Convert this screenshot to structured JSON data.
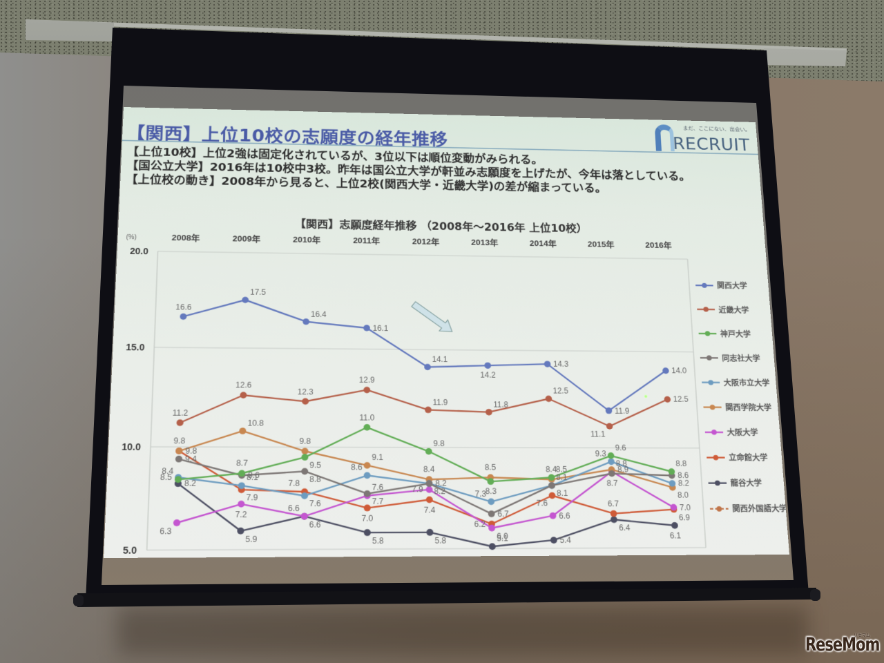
{
  "scene": {
    "watermark": "ReseMom",
    "watermark_sub": "リセマム"
  },
  "slide": {
    "title": "【関西】上位10校の志願度の経年推移",
    "logo": {
      "tagline": "まだ、ここにない、出会い。",
      "name": "RECRUIT"
    },
    "bullets": [
      {
        "tag": "【上位10校】",
        "text": "上位2強は固定化されているが、3位以下は順位変動がみられる。"
      },
      {
        "tag": "【国公立大学】",
        "text": "2016年は10校中3校。昨年は国公立大学が軒並み志願度を上げたが、今年は落としている。"
      },
      {
        "tag": "【上位校の動き】",
        "text": "2008年から見ると、上位2校(関西大学・近畿大学)の差が縮まっている。"
      }
    ]
  },
  "chart_data": {
    "type": "line",
    "title": "【関西】志願度経年推移 （2008年～2016年 上位10校）",
    "xlabel": "",
    "ylabel": "(%)",
    "categories": [
      "2008年",
      "2009年",
      "2010年",
      "2011年",
      "2012年",
      "2013年",
      "2014年",
      "2015年",
      "2016年"
    ],
    "ylim": [
      5.0,
      20.0
    ],
    "yticks": [
      "20.0",
      "15.0",
      "10.0",
      "5.0"
    ],
    "grid": true,
    "legend_position": "right",
    "series": [
      {
        "name": "関西大学",
        "color": "#6479bd",
        "dashed": false,
        "values": [
          16.6,
          17.5,
          16.4,
          16.1,
          14.1,
          14.2,
          14.3,
          11.9,
          14.0
        ],
        "label_pos": [
          "a",
          "ar",
          "ar",
          "r",
          "ar",
          "b",
          "r",
          "r",
          "r"
        ]
      },
      {
        "name": "近畿大学",
        "color": "#b5604a",
        "dashed": false,
        "values": [
          11.2,
          12.6,
          12.3,
          12.9,
          11.9,
          11.8,
          12.5,
          11.1,
          12.5
        ],
        "label_pos": [
          "a",
          "a",
          "a",
          "a",
          "ar",
          "ar",
          "ar",
          "bl",
          "r"
        ]
      },
      {
        "name": "神戸大学",
        "color": "#62ad56",
        "dashed": false,
        "values": [
          8.4,
          8.7,
          9.5,
          11.0,
          9.8,
          8.3,
          8.5,
          9.6,
          8.8
        ],
        "label_pos": [
          "al",
          "a",
          "br",
          "a",
          "ar",
          "b",
          "ar",
          "ar",
          "ar"
        ]
      },
      {
        "name": "同志社大学",
        "color": "#7d7775",
        "dashed": false,
        "values": [
          9.4,
          8.6,
          8.8,
          7.7,
          8.2,
          6.7,
          8.1,
          8.7,
          8.6
        ],
        "label_pos": [
          "r",
          "r",
          "br",
          "br",
          "br",
          "r",
          "br",
          "b",
          "r"
        ]
      },
      {
        "name": "大阪市立大学",
        "color": "#6d9cc0",
        "dashed": false,
        "values": [
          8.5,
          8.1,
          7.6,
          8.6,
          8.2,
          7.3,
          8.1,
          9.3,
          8.2
        ],
        "label_pos": [
          "l",
          "ar",
          "br",
          "al",
          "r",
          "al",
          "ar",
          "al",
          "r"
        ]
      },
      {
        "name": "関西学院大学",
        "color": "#c88750",
        "dashed": false,
        "values": [
          9.8,
          10.8,
          9.8,
          9.1,
          8.4,
          8.5,
          8.4,
          8.9,
          8.0
        ],
        "label_pos": [
          "a",
          "ar",
          "a",
          "ar",
          "a",
          "a",
          "a",
          "r",
          "br"
        ]
      },
      {
        "name": "大阪大学",
        "color": "#c456d0",
        "dashed": false,
        "values": [
          6.3,
          7.2,
          6.6,
          7.6,
          7.9,
          6.0,
          6.6,
          8.8,
          7.0
        ],
        "label_pos": [
          "bl",
          "b",
          "al",
          "ar",
          "l",
          "br",
          "r",
          "ar",
          "r"
        ]
      },
      {
        "name": "立命館大学",
        "color": "#cf5b38",
        "dashed": false,
        "values": [
          9.8,
          7.9,
          7.8,
          7.0,
          7.4,
          6.2,
          7.6,
          6.7,
          6.9
        ],
        "label_pos": [
          "r",
          "br",
          "al",
          "b",
          "b",
          "l",
          "bl",
          "a",
          "br"
        ]
      },
      {
        "name": "龍谷大学",
        "color": "#4d4f63",
        "dashed": false,
        "values": [
          8.2,
          5.9,
          6.6,
          5.8,
          5.8,
          5.1,
          5.4,
          6.4,
          6.1
        ],
        "label_pos": [
          "r",
          "br",
          "br",
          "br",
          "br",
          "ar",
          "r",
          "br",
          "b"
        ]
      },
      {
        "name": "関西外国語大学",
        "color": "#c0754a",
        "dashed": true,
        "values": [
          null,
          null,
          null,
          null,
          null,
          null,
          null,
          null,
          null
        ],
        "label_pos": []
      }
    ],
    "annotations": [
      {
        "type": "arrow",
        "direction": "down-right",
        "near": "2012年"
      }
    ]
  }
}
